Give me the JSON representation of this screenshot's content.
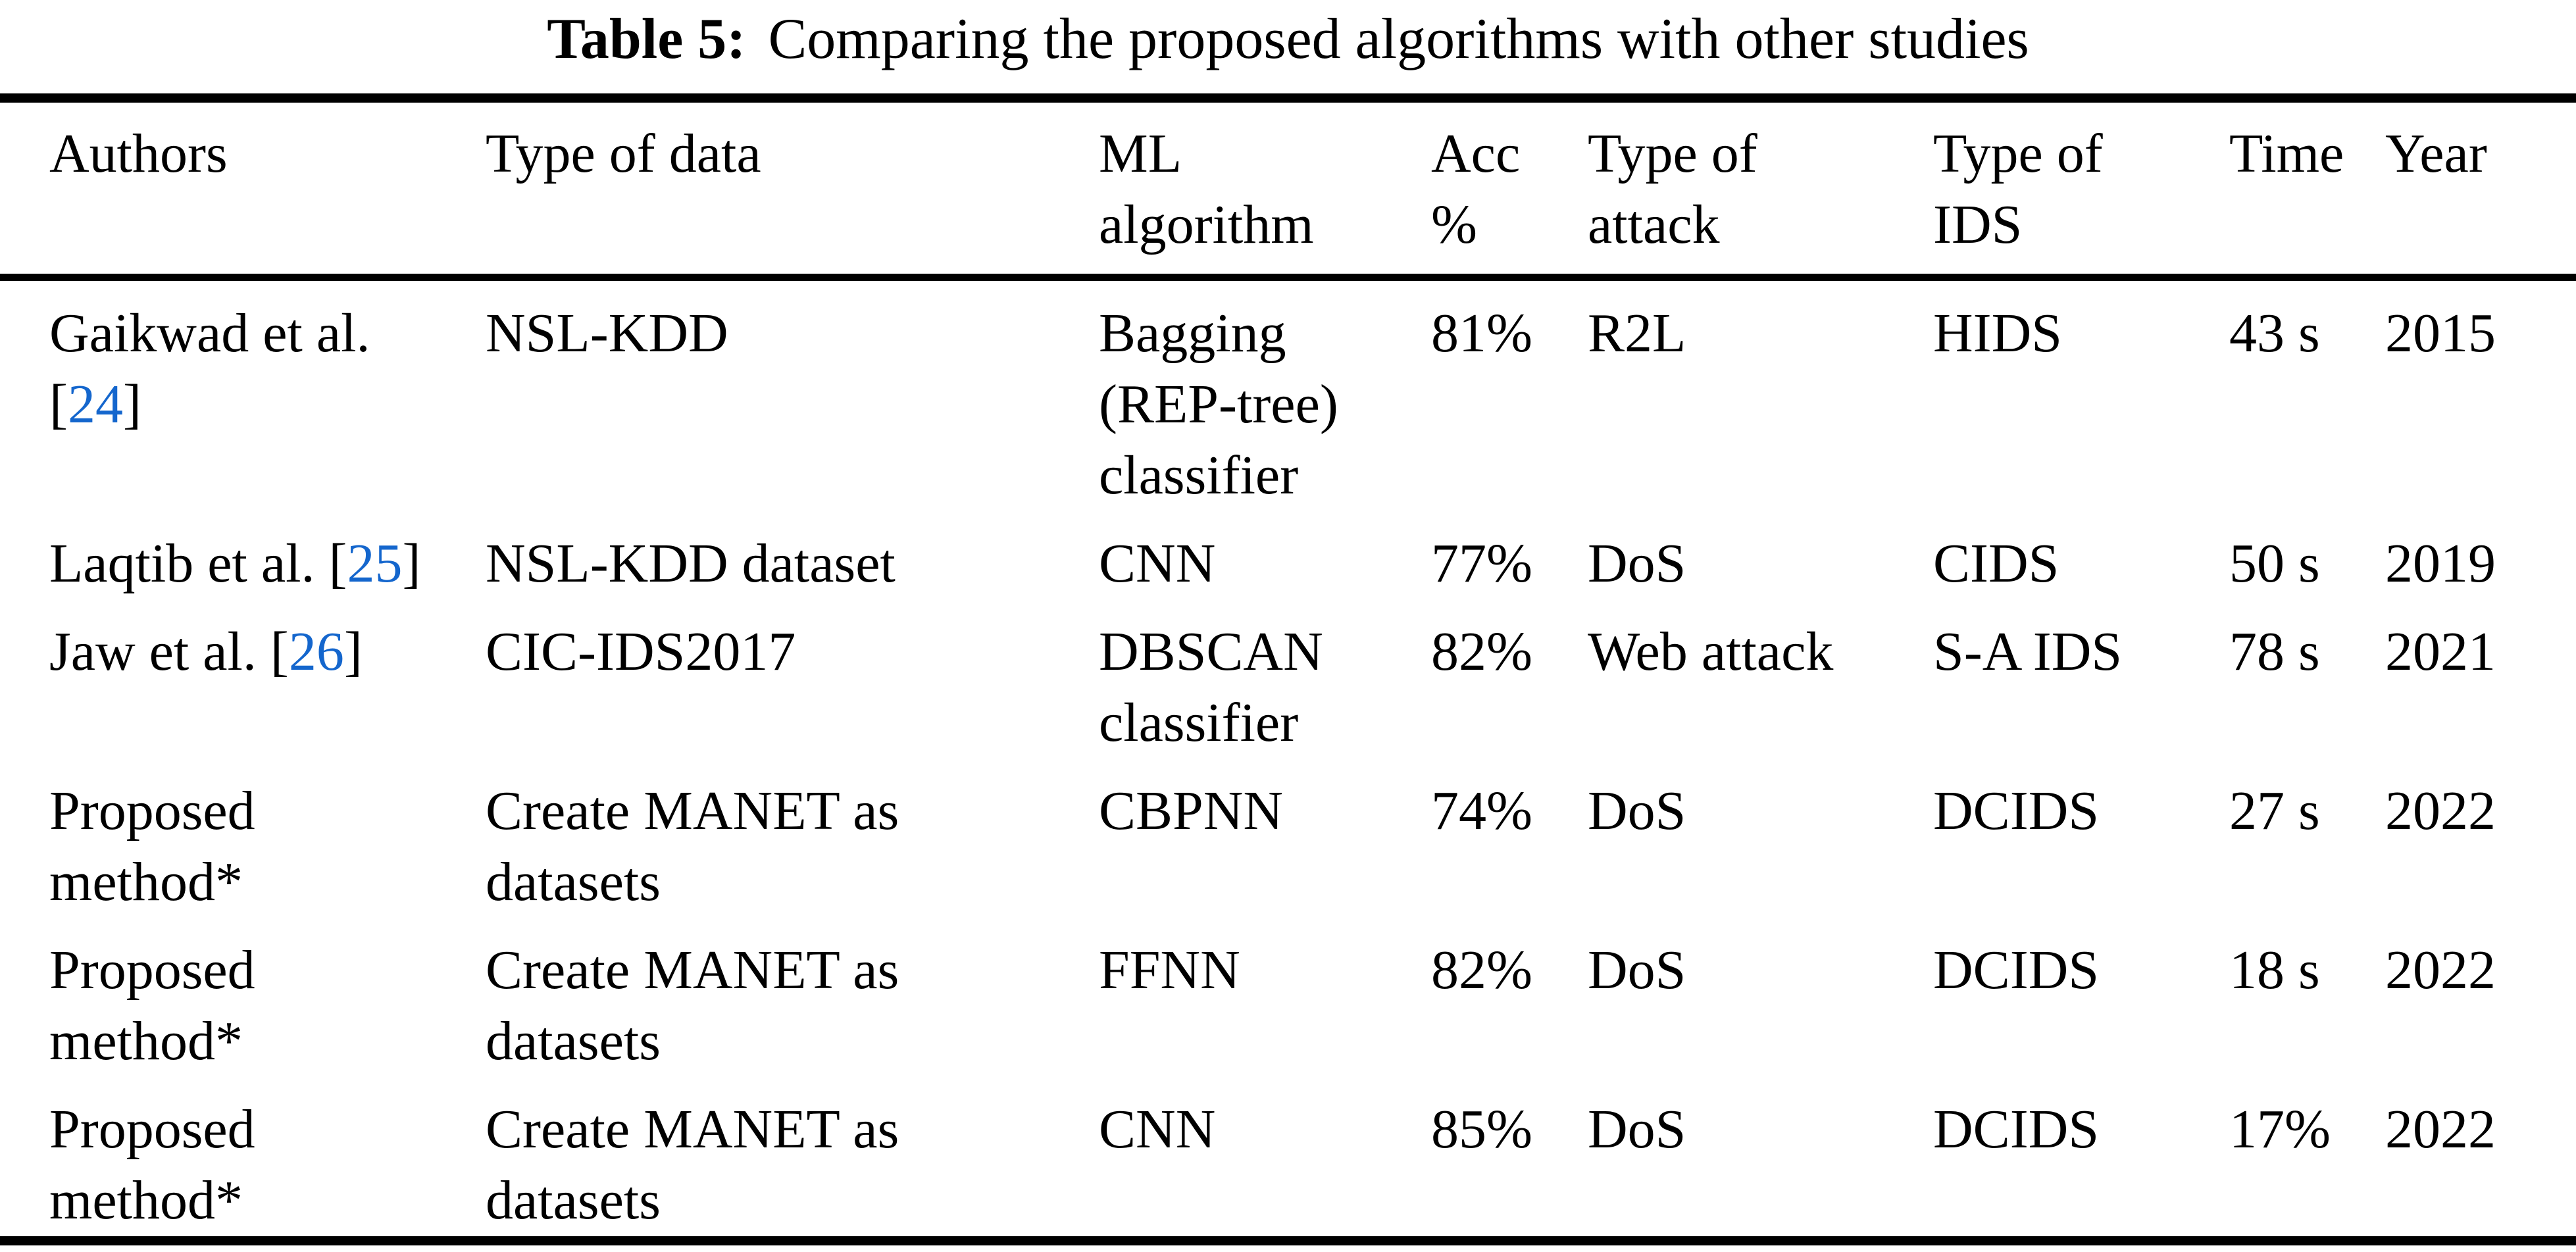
{
  "title": {
    "label": "Table 5:",
    "text": "Comparing the proposed algorithms with other studies"
  },
  "accent_colors": {
    "citation_blue": "#1466CD",
    "text_black": "#000000"
  },
  "table": {
    "citation_brackets": {
      "open": "[",
      "close": "]"
    },
    "columns": [
      {
        "key": "authors",
        "label": "Authors"
      },
      {
        "key": "data_type",
        "label": "Type of data"
      },
      {
        "key": "ml_algorithm",
        "label": "ML\nalgorithm"
      },
      {
        "key": "acc",
        "label": "Acc\n%"
      },
      {
        "key": "attack",
        "label": "Type of\nattack"
      },
      {
        "key": "ids",
        "label": "Type of\nIDS"
      },
      {
        "key": "time",
        "label": "Time"
      },
      {
        "key": "year",
        "label": "Year"
      }
    ],
    "rows": [
      {
        "authors": {
          "name": "Gaikwad et al.",
          "cite": "24",
          "cite_new_line": true
        },
        "data_type": "NSL-KDD",
        "ml_algorithm": "Bagging\n(REP-tree)\nclassifier",
        "acc": "81%",
        "attack": "R2L",
        "ids": "HIDS",
        "time": "43 s",
        "year": "2015"
      },
      {
        "authors": {
          "name": "Laqtib et al.",
          "cite": "25",
          "cite_new_line": false
        },
        "data_type": "NSL-KDD dataset",
        "ml_algorithm": "CNN",
        "acc": "77%",
        "attack": "DoS",
        "ids": "CIDS",
        "time": "50 s",
        "year": "2019"
      },
      {
        "authors": {
          "name": "Jaw et al.",
          "cite": "26",
          "cite_new_line": false
        },
        "data_type": "CIC-IDS2017",
        "ml_algorithm": "DBSCAN\nclassifier",
        "acc": "82%",
        "attack": "Web attack",
        "ids": "S-A IDS",
        "time": "78 s",
        "year": "2021"
      },
      {
        "authors": {
          "name": "Proposed\nmethod*",
          "cite": null
        },
        "data_type": "Create MANET as\ndatasets",
        "ml_algorithm": "CBPNN",
        "acc": "74%",
        "attack": "DoS",
        "ids": "DCIDS",
        "time": "27 s",
        "year": "2022"
      },
      {
        "authors": {
          "name": "Proposed\nmethod*",
          "cite": null
        },
        "data_type": "Create MANET as\ndatasets",
        "ml_algorithm": "FFNN",
        "acc": "82%",
        "attack": "DoS",
        "ids": "DCIDS",
        "time": "18 s",
        "year": "2022"
      },
      {
        "authors": {
          "name": "Proposed\nmethod*",
          "cite": null
        },
        "data_type": "Create MANET as\ndatasets",
        "ml_algorithm": "CNN",
        "acc": "85%",
        "attack": "DoS",
        "ids": "DCIDS",
        "time": "17%",
        "year": "2022"
      }
    ]
  }
}
